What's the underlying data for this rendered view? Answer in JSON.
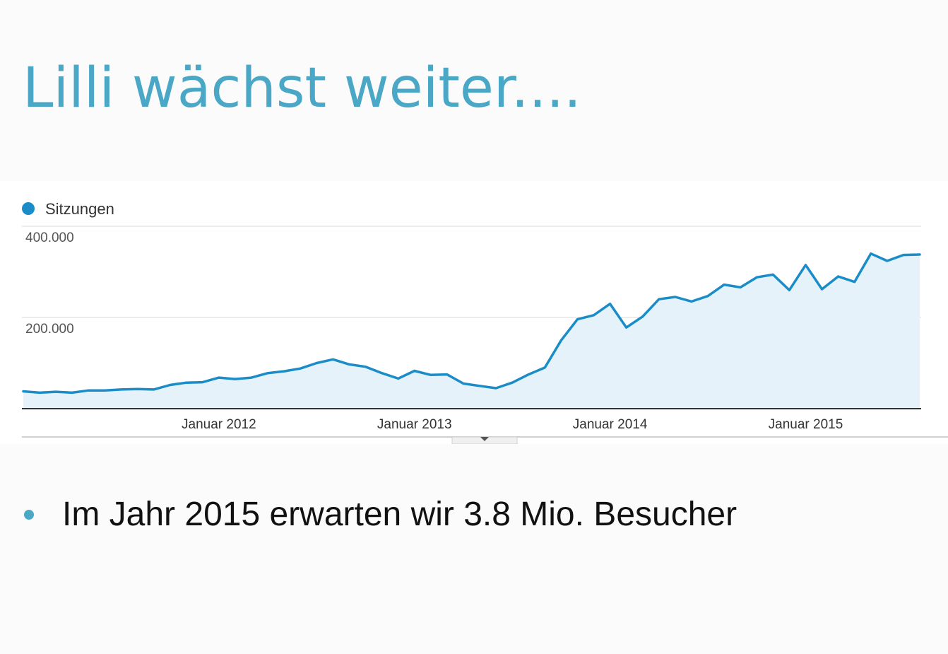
{
  "slide": {
    "title": "Lilli wächst weiter....",
    "bullets": [
      "Im Jahr 2015 erwarten wir 3.8 Mio. Besucher"
    ]
  },
  "colors": {
    "title": "#4aa8c6",
    "bullet": "#4aa8c6",
    "series_line": "#1a8cc8",
    "series_fill": "#e6f2fa",
    "gridline": "#e5e5e5"
  },
  "chart_data": {
    "type": "area",
    "title": "",
    "xlabel": "",
    "ylabel": "",
    "ylim": [
      0,
      400000
    ],
    "yticks": [
      200000,
      400000
    ],
    "ytick_labels": [
      "200.000",
      "400.000"
    ],
    "xticks": [
      "2012-01",
      "2013-01",
      "2014-01",
      "2015-01"
    ],
    "xtick_labels": [
      "Januar 2012",
      "Januar 2013",
      "Januar 2014",
      "Januar 2015"
    ],
    "grid": true,
    "legend": "top-left",
    "x": [
      "2011-01",
      "2011-02",
      "2011-03",
      "2011-04",
      "2011-05",
      "2011-06",
      "2011-07",
      "2011-08",
      "2011-09",
      "2011-10",
      "2011-11",
      "2011-12",
      "2012-01",
      "2012-02",
      "2012-03",
      "2012-04",
      "2012-05",
      "2012-06",
      "2012-07",
      "2012-08",
      "2012-09",
      "2012-10",
      "2012-11",
      "2012-12",
      "2013-01",
      "2013-02",
      "2013-03",
      "2013-04",
      "2013-05",
      "2013-06",
      "2013-07",
      "2013-08",
      "2013-09",
      "2013-10",
      "2013-11",
      "2013-12",
      "2014-01",
      "2014-02",
      "2014-03",
      "2014-04",
      "2014-05",
      "2014-06",
      "2014-07",
      "2014-08",
      "2014-09",
      "2014-10",
      "2014-11",
      "2014-12",
      "2015-01",
      "2015-02",
      "2015-03",
      "2015-04",
      "2015-05",
      "2015-06",
      "2015-07",
      "2015-08"
    ],
    "series": [
      {
        "name": "Sitzungen",
        "color": "#1a8cc8",
        "values": [
          38000,
          35000,
          37000,
          35000,
          40000,
          40000,
          42000,
          43000,
          42000,
          52000,
          57000,
          58000,
          68000,
          65000,
          68000,
          78000,
          82000,
          88000,
          100000,
          108000,
          97000,
          92000,
          78000,
          66000,
          83000,
          74000,
          75000,
          55000,
          50000,
          45000,
          57000,
          75000,
          90000,
          150000,
          196000,
          205000,
          230000,
          178000,
          202000,
          240000,
          245000,
          235000,
          247000,
          272000,
          266000,
          288000,
          294000,
          260000,
          315000,
          262000,
          290000,
          278000,
          340000,
          324000,
          337000,
          338000
        ]
      }
    ]
  }
}
